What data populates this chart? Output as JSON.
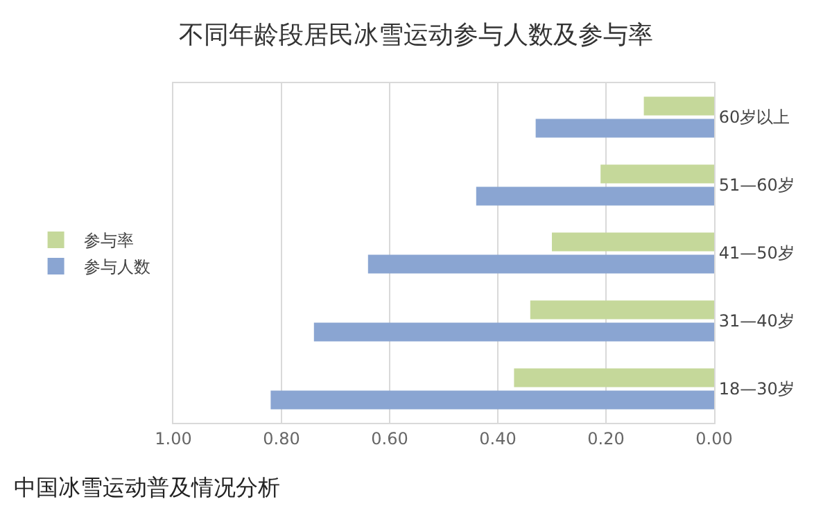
{
  "chart_data": {
    "type": "bar",
    "orientation": "horizontal",
    "title": "不同年龄段居民冰雪运动参与人数及参与率",
    "categories": [
      "60岁以上",
      "51—60岁",
      "41—50岁",
      "31—40岁",
      "18—30岁"
    ],
    "series": [
      {
        "name": "参与率",
        "color": "#c5d89a",
        "values": [
          0.13,
          0.21,
          0.3,
          0.34,
          0.37
        ]
      },
      {
        "name": "参与人数",
        "color": "#8aa5d2",
        "values": [
          0.33,
          0.44,
          0.64,
          0.74,
          0.82
        ]
      }
    ],
    "xlim": [
      1.0,
      0
    ],
    "xticks": [
      {
        "value": 1.0,
        "label": "1.00"
      },
      {
        "value": 0.8,
        "label": "0.80"
      },
      {
        "value": 0.6,
        "label": "0.60"
      },
      {
        "value": 0.4,
        "label": "0.40"
      },
      {
        "value": 0.2,
        "label": "0.20"
      },
      {
        "value": 0,
        "label": "0.00"
      }
    ],
    "grid": true,
    "legend": "left",
    "annotations": [
      "中国冰雪运动普及情况分析"
    ]
  }
}
